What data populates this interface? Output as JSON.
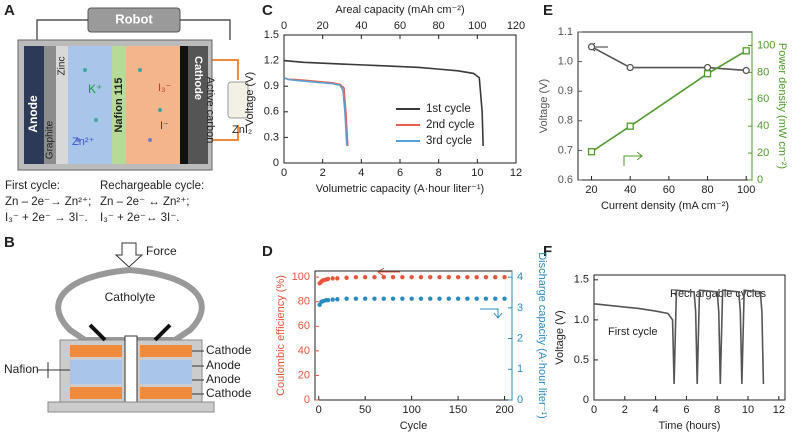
{
  "panels": [
    "A",
    "B",
    "C",
    "D",
    "E",
    "F"
  ],
  "diagram_a": {
    "robot": "Robot",
    "zinc": "Zinc",
    "anode": "Anode",
    "graphite": "Graphite",
    "k_ion": "K⁺",
    "zn_ion": "Zn²⁺",
    "membrane": "Nafion 115",
    "triiodide": "I₃⁻",
    "iodide": "I⁻",
    "cathode": "Cathode",
    "active_carbon": "Active carbon",
    "salt": "ZnI₂",
    "first_cycle": {
      "title": "First cycle:",
      "line1": "Zn – 2e⁻→ Zn²⁺;",
      "line2": "I₃⁻ + 2e⁻ → 3I⁻."
    },
    "recharge": {
      "title": "Rechargeable cycle:",
      "line1": "Zn – 2e⁻ ↔ Zn²⁺;",
      "line2": "I₃⁻ + 2e⁻↔ 3I⁻."
    }
  },
  "diagram_b": {
    "force": "Force",
    "catholyte": "Catholyte",
    "nafion": "Nafion",
    "labels": [
      "Cathode",
      "Anode",
      "Anode",
      "Cathode"
    ]
  },
  "chart_data": [
    {
      "type": "line",
      "xlabel": "Volumetric capacity (A·hour liter⁻¹)",
      "x2label": "Areal capacity (mAh cm⁻²)",
      "ylabel": "Voltage (V)",
      "xlim": [
        0,
        12
      ],
      "xticks": [
        0,
        2,
        4,
        6,
        8,
        10,
        12
      ],
      "x2lim": [
        0,
        120
      ],
      "x2ticks": [
        0,
        20,
        40,
        60,
        80,
        100,
        120
      ],
      "ylim": [
        0,
        1.5
      ],
      "yticks": [
        0,
        0.3,
        0.6,
        0.9,
        1.2,
        1.5
      ],
      "legend": "lower right",
      "series": [
        {
          "name": "1st cycle",
          "color": "#3a3a3a",
          "x": [
            0,
            1,
            2,
            3,
            4,
            5,
            6,
            7,
            8,
            9,
            9.8,
            10.1,
            10.25,
            10.3
          ],
          "values": [
            1.2,
            1.18,
            1.17,
            1.16,
            1.15,
            1.14,
            1.13,
            1.12,
            1.1,
            1.08,
            1.05,
            1.0,
            0.6,
            0.2
          ]
        },
        {
          "name": "2nd cycle",
          "color": "#e8604c",
          "x": [
            0,
            0.2,
            0.5,
            1,
            1.5,
            2,
            2.5,
            2.9,
            3.1,
            3.2,
            3.3
          ],
          "values": [
            1.0,
            0.98,
            0.98,
            0.97,
            0.96,
            0.95,
            0.94,
            0.92,
            0.88,
            0.6,
            0.2
          ]
        },
        {
          "name": "3rd cycle",
          "color": "#5aa0d8",
          "x": [
            0,
            0.2,
            0.5,
            1,
            1.5,
            2,
            2.5,
            2.9,
            3.05,
            3.15,
            3.25
          ],
          "values": [
            1.0,
            0.98,
            0.97,
            0.96,
            0.95,
            0.94,
            0.93,
            0.91,
            0.85,
            0.6,
            0.2
          ]
        }
      ]
    },
    {
      "type": "scatter",
      "xlabel": "Cycle",
      "ylabel": "Coulombic efficiency (%)",
      "y2label": "Discharge capacity (A·hour liter⁻¹)",
      "xlim": [
        -4,
        208
      ],
      "xticks": [
        0,
        50,
        100,
        150,
        200
      ],
      "ylim": [
        0,
        105
      ],
      "yticks": [
        0,
        20,
        40,
        60,
        80,
        100
      ],
      "y2lim": [
        0,
        4.2
      ],
      "y2ticks": [
        0,
        1,
        2,
        3,
        4
      ],
      "x": [
        1,
        3,
        5,
        8,
        10,
        15,
        20,
        30,
        40,
        50,
        60,
        70,
        80,
        90,
        100,
        110,
        120,
        130,
        140,
        150,
        160,
        170,
        180,
        190,
        200
      ],
      "series": [
        {
          "color": "#e8553b",
          "values": [
            95,
            96.5,
            97.5,
            98,
            98.5,
            99,
            99,
            99.5,
            100,
            100,
            100,
            100,
            100,
            100,
            100,
            100,
            100,
            100,
            100,
            100,
            100,
            100,
            100,
            100,
            100
          ]
        },
        {
          "color": "#2a8bbf",
          "axis": "y2",
          "values": [
            3.1,
            3.2,
            3.22,
            3.25,
            3.25,
            3.27,
            3.28,
            3.3,
            3.3,
            3.3,
            3.3,
            3.3,
            3.3,
            3.3,
            3.3,
            3.3,
            3.3,
            3.3,
            3.3,
            3.3,
            3.3,
            3.3,
            3.3,
            3.3,
            3.3
          ]
        }
      ]
    },
    {
      "type": "line",
      "xlabel": "Current density (mA cm⁻²)",
      "ylabel": "Voltage (V)",
      "y2label": "Power density (mW cm⁻²)",
      "xlim": [
        13,
        103
      ],
      "xticks": [
        20,
        40,
        60,
        80,
        100
      ],
      "ylim": [
        0.6,
        1.1
      ],
      "yticks": [
        0.6,
        0.7,
        0.8,
        0.9,
        {
          "value": 1,
          "label": "1.0"
        },
        1.1
      ],
      "y2lim": [
        0,
        110
      ],
      "y2ticks": [
        0,
        20,
        40,
        60,
        80,
        100
      ],
      "x": [
        20,
        40,
        80,
        100
      ],
      "series": [
        {
          "color": "#555555",
          "marker": "circle",
          "values": [
            1.05,
            0.98,
            0.98,
            0.97
          ]
        },
        {
          "color": "#4f9a2a",
          "marker": "square",
          "axis": "y2",
          "values": [
            21,
            40,
            79,
            96
          ]
        }
      ]
    },
    {
      "type": "line",
      "xlabel": "Time (hours)",
      "ylabel": "Voltage (V)",
      "xlim": [
        0,
        12.4
      ],
      "xticks": [
        0,
        2,
        4,
        6,
        8,
        10,
        12
      ],
      "ylim": [
        0,
        1.56
      ],
      "yticks": [
        0,
        0.5,
        {
          "value": 1,
          "label": "1.0"
        },
        1.5
      ],
      "annotations": [
        "First cycle",
        "Rechargable cycles"
      ],
      "series": [
        {
          "color": "#555555",
          "x": [
            0,
            1,
            2,
            3,
            4,
            4.8,
            5.1,
            5.2,
            5.35,
            6.5,
            6.6,
            6.7,
            6.85,
            8.0,
            8.1,
            8.2,
            8.35,
            9.4,
            9.5,
            9.6,
            9.75,
            10.8,
            10.9,
            11.0
          ],
          "values": [
            1.2,
            1.18,
            1.16,
            1.14,
            1.11,
            1.08,
            1.0,
            0.2,
            1.37,
            1.35,
            1.1,
            0.2,
            1.37,
            1.35,
            1.1,
            0.2,
            1.37,
            1.35,
            1.1,
            0.2,
            1.37,
            1.35,
            1.1,
            0.2
          ]
        }
      ]
    }
  ]
}
